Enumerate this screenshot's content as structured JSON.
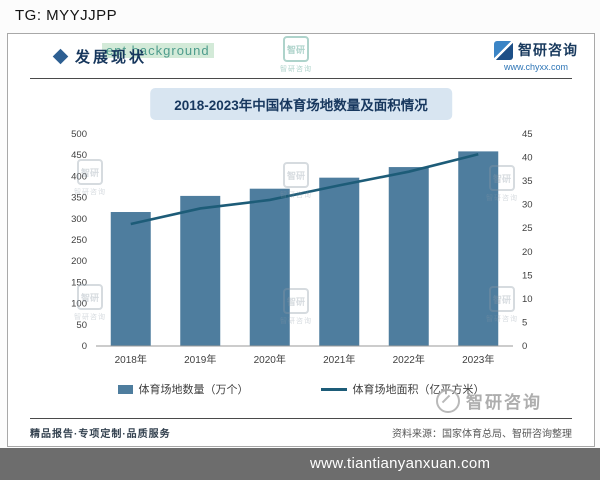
{
  "watermarks": {
    "tg": "TG: MYYJJPP",
    "header_bg": "ent background",
    "logo_text": "智研",
    "logo_caption": "智研咨询"
  },
  "header": {
    "section_title": "发展现状"
  },
  "brand": {
    "name": "智研咨询",
    "url": "www.chyxx.com"
  },
  "chart_data": {
    "type": "bar",
    "subtype": "bar+line combo",
    "title": "2018-2023年中国体育场地数量及面积情况",
    "categories": [
      "2018年",
      "2019年",
      "2020年",
      "2021年",
      "2022年",
      "2023年"
    ],
    "series": [
      {
        "name": "体育场地数量（万个）",
        "type": "bar",
        "axis": "left",
        "values": [
          316,
          354,
          371,
          397,
          422,
          459
        ]
      },
      {
        "name": "体育场地面积（亿平方米）",
        "type": "line",
        "axis": "right",
        "values": [
          25.9,
          29.2,
          31,
          34.1,
          37,
          40.7
        ]
      }
    ],
    "left_axis": {
      "min": 0,
      "max": 500,
      "step": 50
    },
    "right_axis": {
      "min": 0,
      "max": 45,
      "step": 5
    },
    "grid": false,
    "legend_position": "bottom",
    "bar_color": "#4e7d9e",
    "line_color": "#1d5c78"
  },
  "footer": {
    "tagline": "精品报告·专项定制·品质服务",
    "source": "资料来源：国家体育总局、智研咨询整理",
    "gray_logo": "智研咨询",
    "url_bar": "www.tiantianyanxuan.com"
  }
}
